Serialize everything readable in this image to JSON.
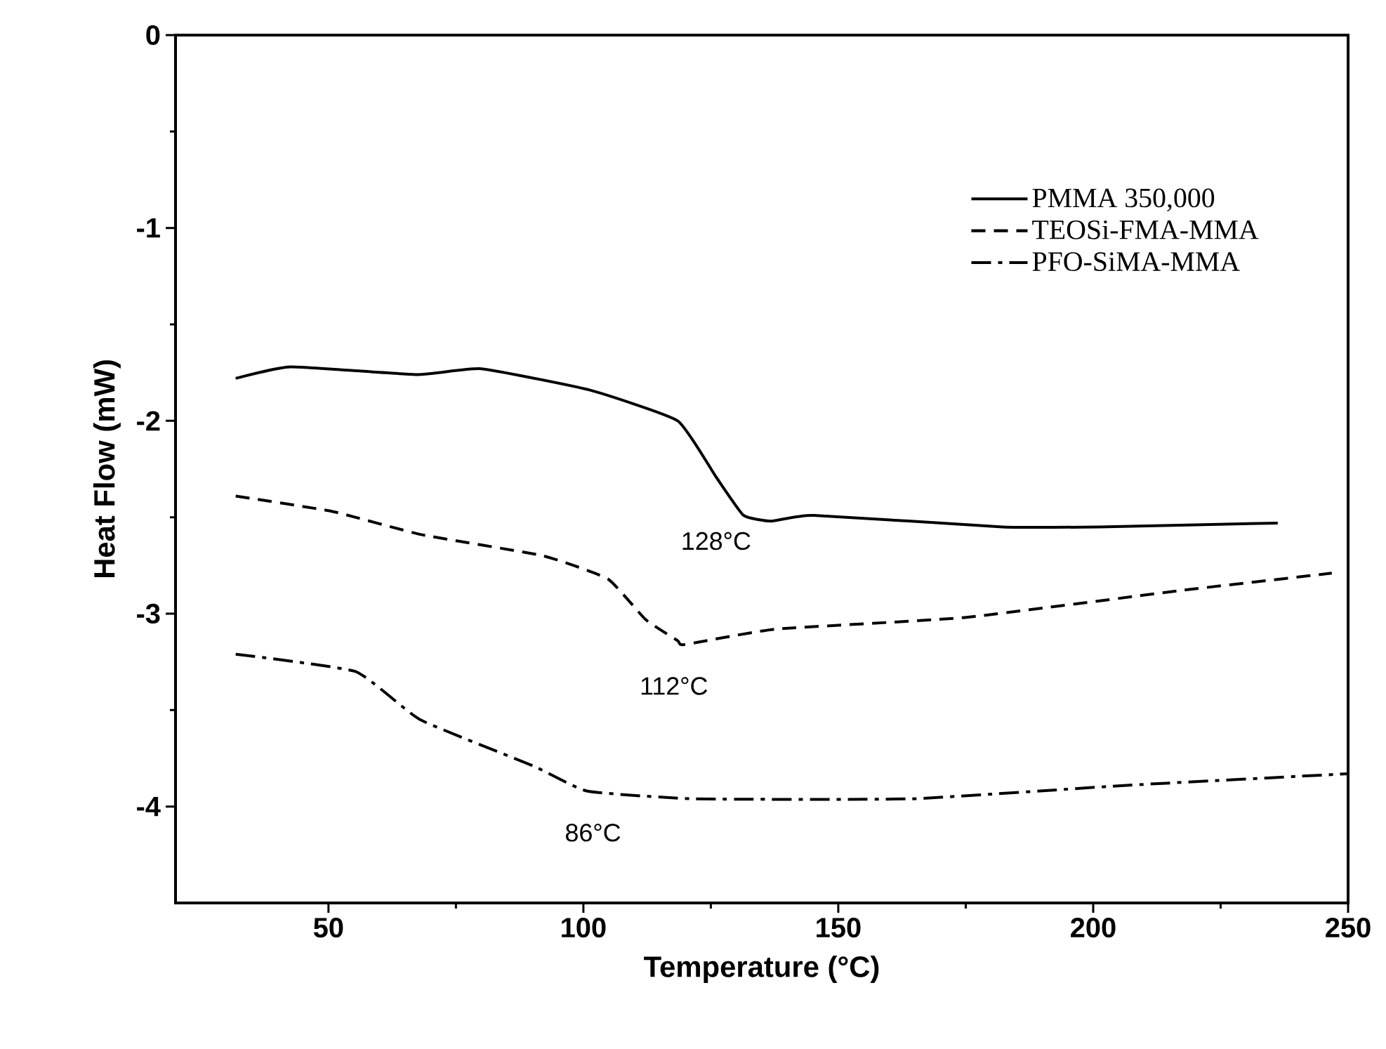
{
  "chart_data": {
    "type": "line",
    "xlabel": "Temperature (°C)",
    "ylabel": "Heat Flow (mW)",
    "xlim": [
      20,
      250
    ],
    "ylim": [
      -4.5,
      0
    ],
    "xticks": [
      50,
      100,
      150,
      200,
      250
    ],
    "yticks": [
      0,
      -1,
      -2,
      -3,
      -4
    ],
    "legend": "top right",
    "grid": false,
    "marker": "none",
    "series": [
      {
        "name": "PMMA 350,000",
        "color": "#000000",
        "line_style": "solid",
        "x": [
          31.8,
          42.6,
          67.3,
          80,
          101.2,
          118.5,
          126,
          131.4,
          136.9,
          145.2,
          182.2,
          201.2,
          236.2
        ],
        "values": [
          -1.78,
          -1.72,
          -1.76,
          -1.73,
          -1.84,
          -2.0,
          -2.29,
          -2.49,
          -2.52,
          -2.49,
          -2.55,
          -2.55,
          -2.53
        ]
      },
      {
        "name": "TEOSi-FMA-MMA",
        "color": "#000000",
        "line_style": "dashed",
        "x": [
          31.8,
          50.8,
          68.2,
          92.1,
          104.8,
          112.2,
          118.5,
          119.8,
          137.8,
          174.8,
          217.1,
          246.8
        ],
        "values": [
          -2.39,
          -2.47,
          -2.59,
          -2.7,
          -2.82,
          -3.03,
          -3.14,
          -3.16,
          -3.08,
          -3.02,
          -2.88,
          -2.79
        ]
      },
      {
        "name": "PFO-SiMA-MMA",
        "color": "#000000",
        "line_style": "dashdot",
        "x": [
          31.8,
          55.3,
          68,
          90.2,
          100.8,
          121.9,
          164.3,
          206.6,
          250
        ],
        "values": [
          -3.21,
          -3.3,
          -3.55,
          -3.79,
          -3.92,
          -3.96,
          -3.96,
          -3.89,
          -3.83
        ]
      }
    ],
    "annotations": [
      "128°C",
      "112°C",
      "86°C"
    ]
  }
}
